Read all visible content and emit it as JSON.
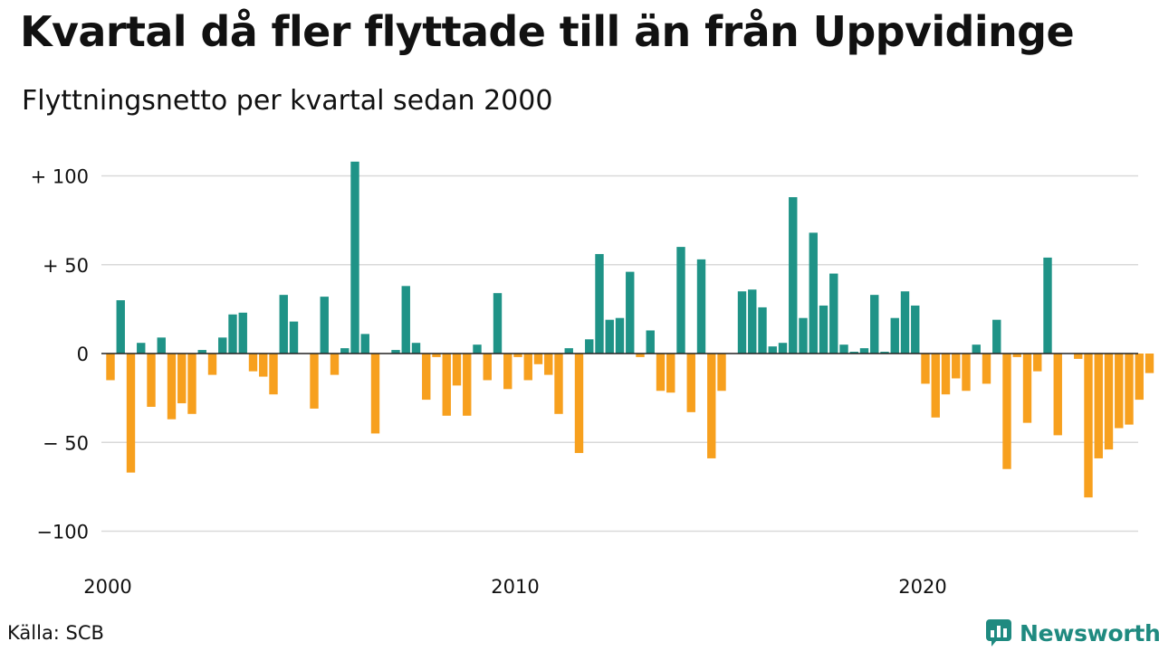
{
  "title": "Kvartal då fler flyttade till än från Uppvidinge",
  "subtitle": "Flyttningsnetto per kvartal sedan 2000",
  "source": "Källa: SCB",
  "brand": {
    "name": "Newsworthy",
    "icon": "newsworthy-logo-icon"
  },
  "colors": {
    "positive": "#1f9387",
    "negative": "#f7a01e",
    "grid": "#d9d9d9",
    "zero_line": "#222222"
  },
  "chart_data": {
    "type": "bar",
    "title": "Kvartal då fler flyttade till än från Uppvidinge",
    "subtitle": "Flyttningsnetto per kvartal sedan 2000",
    "xlabel": "",
    "ylabel": "",
    "start": "2000 Q1",
    "frequency": "quarterly",
    "ylim": [
      -110,
      110
    ],
    "yticks": [
      100,
      50,
      0,
      -50,
      -100
    ],
    "ytick_labels": [
      "+ 100",
      "+  50",
      "0",
      "− 50",
      "−100"
    ],
    "xtick_labels": [
      "2000",
      "2010",
      "2020"
    ],
    "grid": true,
    "values": [
      -15,
      30,
      -67,
      6,
      -30,
      9,
      -37,
      -28,
      -34,
      2,
      -12,
      9,
      22,
      23,
      -10,
      -13,
      -23,
      33,
      18,
      0,
      -31,
      32,
      -12,
      3,
      108,
      11,
      -45,
      0,
      2,
      38,
      6,
      -26,
      -2,
      -35,
      -18,
      -35,
      5,
      -15,
      34,
      -20,
      -2,
      -15,
      -6,
      -12,
      -34,
      3,
      -56,
      8,
      56,
      19,
      20,
      46,
      -2,
      13,
      -21,
      -22,
      60,
      -33,
      53,
      -59,
      -21,
      0,
      35,
      36,
      26,
      4,
      6,
      88,
      20,
      68,
      27,
      45,
      5,
      1,
      3,
      33,
      1,
      20,
      35,
      27,
      -17,
      -36,
      -23,
      -14,
      -21,
      5,
      -17,
      19,
      -65,
      -2,
      -39,
      -10,
      54,
      -46,
      0,
      -3,
      -81,
      -59,
      -54,
      -42,
      -40,
      -26,
      -11
    ]
  }
}
